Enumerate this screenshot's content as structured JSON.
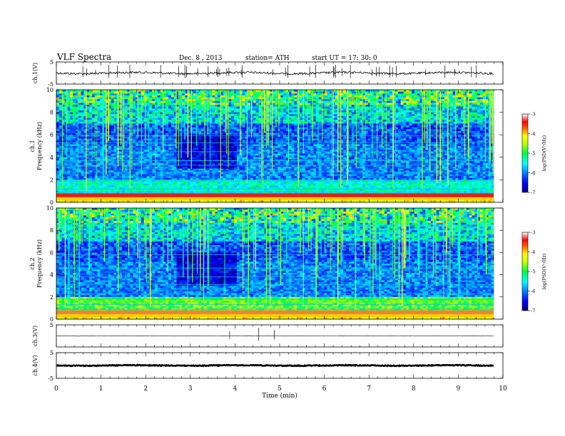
{
  "header": {
    "title": "VLF Spectra",
    "date": "Dec. 8 , 2013",
    "station": "station= ATH",
    "start_ut": "start  UT =   17: 30: 0"
  },
  "chart_data": [
    {
      "type": "line",
      "ylabel": "ch.1(V)",
      "ylim": [
        -5,
        5
      ],
      "y_tick_labels": [
        "5",
        "-5"
      ],
      "baseline": 0,
      "description_level": "noisy waveform around 0 V with spikes"
    },
    {
      "type": "heatmap",
      "ylabel": "ch.1\nFrequency (kHz)",
      "ylabel_line1": "ch.1",
      "ylabel_line2": "Frequency (kHz)",
      "y_tick_labels": [
        "10",
        "8",
        "6",
        "4",
        "2",
        "0"
      ],
      "ylim": [
        0,
        10
      ],
      "xlim": [
        0,
        10
      ],
      "colorbar_label": "log(PSD(V²/Hz)",
      "colorbar_ticks": [
        "-3",
        "-4",
        "-5",
        "-6",
        "-7"
      ],
      "colorbar_range": [
        -7,
        -3
      ]
    },
    {
      "type": "heatmap",
      "ylabel": "ch.2\nFrequency (kHz)",
      "ylabel_line1": "ch.2",
      "ylabel_line2": "Frequency (kHz)",
      "y_tick_labels": [
        "10",
        "8",
        "6",
        "4",
        "2",
        "0"
      ],
      "ylim": [
        0,
        10
      ],
      "xlim": [
        0,
        10
      ],
      "colorbar_label": "log(PSD(V²/Hz)",
      "colorbar_ticks": [
        "-3",
        "-4",
        "-5",
        "-6",
        "-7"
      ],
      "colorbar_range": [
        -7,
        -3
      ]
    },
    {
      "type": "line",
      "ylabel": "ch.3(V)",
      "ylim": [
        -5,
        5
      ],
      "y_tick_labels": [
        "5"
      ],
      "baseline": 0
    },
    {
      "type": "line",
      "ylabel": "ch.4(V)",
      "ylim": [
        -5,
        5
      ],
      "y_tick_labels": [
        "5",
        "-5"
      ],
      "baseline": 0
    }
  ],
  "x_axis": {
    "label": "Time  (min)",
    "tick_labels": [
      "0",
      "1",
      "2",
      "3",
      "4",
      "5",
      "6",
      "7",
      "8",
      "9",
      "10"
    ],
    "range": [
      0,
      10
    ]
  },
  "colors": {
    "axes": "#000000",
    "trace": "#000000",
    "background": "#ffffff"
  }
}
